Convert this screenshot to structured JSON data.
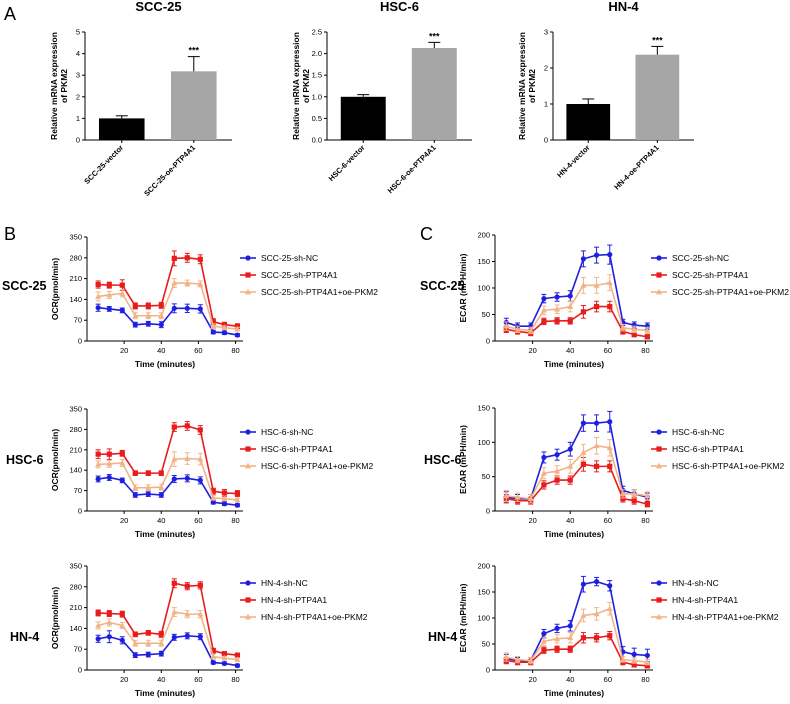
{
  "panel_labels": {
    "A": "A",
    "B": "B",
    "C": "C"
  },
  "row_labels": [
    "SCC-25",
    "HSC-6",
    "HN-4"
  ],
  "chart_data": [
    {
      "id": "A1",
      "type": "bar",
      "title": "SCC-25",
      "ylabel_line1": "Relative mRNA expression",
      "ylabel_line2": "of PKM2",
      "categories": [
        "SCC-25-vector",
        "SCC-25-oe-PTP4A1"
      ],
      "values": [
        1.0,
        3.18
      ],
      "errors": [
        0.12,
        0.68
      ],
      "colors": [
        "#000000",
        "#a6a6a6"
      ],
      "significance": [
        "",
        "***"
      ],
      "ylim": [
        0,
        5
      ],
      "yticks": [
        "0",
        "1",
        "2",
        "3",
        "4",
        "5"
      ]
    },
    {
      "id": "A2",
      "type": "bar",
      "title": "HSC-6",
      "ylabel_line1": "Relative mRNA expression",
      "ylabel_line2": "of PKM2",
      "categories": [
        "HSC-6-vector",
        "HSC-6-oe-PTP4A1"
      ],
      "values": [
        1.0,
        2.13
      ],
      "errors": [
        0.05,
        0.13
      ],
      "colors": [
        "#000000",
        "#a6a6a6"
      ],
      "significance": [
        "",
        "***"
      ],
      "ylim": [
        0,
        2.5
      ],
      "yticks": [
        "0.0",
        "0.5",
        "1.0",
        "1.5",
        "2.0",
        "2.5"
      ]
    },
    {
      "id": "A3",
      "type": "bar",
      "title": "HN-4",
      "ylabel_line1": "Relative mRNA expression",
      "ylabel_line2": "of PKM2",
      "categories": [
        "HN-4-vector",
        "HN-4-oe-PTP4A1"
      ],
      "values": [
        1.0,
        2.37
      ],
      "errors": [
        0.14,
        0.23
      ],
      "colors": [
        "#000000",
        "#a6a6a6"
      ],
      "significance": [
        "",
        "***"
      ],
      "ylim": [
        0,
        3
      ],
      "yticks": [
        "0",
        "1",
        "2",
        "3"
      ]
    },
    {
      "id": "B1",
      "type": "line",
      "ylabel": "OCR(pmol/min)",
      "xlabel": "Time (minutes)",
      "ylim": [
        0,
        350
      ],
      "yticks": [
        "0",
        "70",
        "140",
        "210",
        "280",
        "350"
      ],
      "xlim": [
        0,
        84
      ],
      "xticks": [
        "20",
        "40",
        "60",
        "80"
      ],
      "x": [
        6,
        12,
        19,
        26,
        33,
        40,
        47,
        54,
        61,
        68,
        74,
        81
      ],
      "series": [
        {
          "name": "SCC-25-sh-NC",
          "color": "#1f1fe0",
          "marker": "circle",
          "values": [
            112,
            108,
            103,
            55,
            58,
            55,
            110,
            110,
            108,
            30,
            28,
            20
          ],
          "errors": [
            12,
            8,
            8,
            8,
            8,
            10,
            15,
            14,
            14,
            6,
            6,
            5
          ]
        },
        {
          "name": "SCC-25-sh-PTP4A1",
          "color": "#e81c1c",
          "marker": "square",
          "values": [
            190,
            188,
            188,
            118,
            118,
            120,
            278,
            280,
            275,
            65,
            55,
            50
          ],
          "errors": [
            12,
            10,
            18,
            10,
            10,
            10,
            25,
            15,
            15,
            10,
            8,
            8
          ]
        },
        {
          "name": "SCC-25-sh-PTP4A1+oe-PKM2",
          "color": "#f2b487",
          "marker": "triangle",
          "values": [
            150,
            155,
            160,
            85,
            85,
            85,
            195,
            195,
            192,
            50,
            45,
            40
          ],
          "errors": [
            15,
            12,
            12,
            10,
            10,
            10,
            15,
            10,
            10,
            8,
            6,
            6
          ]
        }
      ]
    },
    {
      "id": "C1",
      "type": "line",
      "ylabel": "ECAR (mPH/min)",
      "xlabel": "Time (minutes)",
      "ylim": [
        0,
        200
      ],
      "yticks": [
        "0",
        "50",
        "100",
        "150",
        "200"
      ],
      "xlim": [
        0,
        84
      ],
      "xticks": [
        "20",
        "40",
        "60",
        "80"
      ],
      "x": [
        6,
        12,
        19,
        26,
        33,
        40,
        47,
        54,
        61,
        68,
        74,
        81
      ],
      "series": [
        {
          "name": "SCC-25-sh-NC",
          "color": "#1f1fe0",
          "marker": "circle",
          "values": [
            35,
            28,
            28,
            80,
            83,
            85,
            155,
            162,
            163,
            35,
            30,
            28
          ],
          "errors": [
            8,
            6,
            6,
            8,
            8,
            10,
            15,
            15,
            18,
            6,
            6,
            6
          ]
        },
        {
          "name": "SCC-25-sh-PTP4A1",
          "color": "#e81c1c",
          "marker": "square",
          "values": [
            22,
            18,
            15,
            37,
            38,
            38,
            55,
            65,
            65,
            18,
            12,
            8
          ],
          "errors": [
            6,
            5,
            5,
            6,
            6,
            6,
            12,
            10,
            10,
            5,
            4,
            4
          ]
        },
        {
          "name": "SCC-25-sh-PTP4A1+oe-PKM2",
          "color": "#f2b487",
          "marker": "triangle",
          "values": [
            28,
            22,
            20,
            58,
            60,
            65,
            105,
            105,
            110,
            25,
            22,
            20
          ],
          "errors": [
            8,
            6,
            6,
            8,
            8,
            10,
            15,
            15,
            15,
            6,
            6,
            6
          ]
        }
      ]
    },
    {
      "id": "B2",
      "type": "line",
      "ylabel": "OCR(pmol/min)",
      "xlabel": "Time (minutes)",
      "ylim": [
        0,
        350
      ],
      "yticks": [
        "0",
        "70",
        "140",
        "210",
        "280",
        "350"
      ],
      "xlim": [
        0,
        84
      ],
      "xticks": [
        "20",
        "40",
        "60",
        "80"
      ],
      "x": [
        6,
        12,
        19,
        26,
        33,
        40,
        47,
        54,
        61,
        68,
        74,
        81
      ],
      "series": [
        {
          "name": "HSC-6-sh-NC",
          "color": "#1f1fe0",
          "marker": "circle",
          "values": [
            110,
            115,
            105,
            55,
            58,
            55,
            110,
            112,
            105,
            30,
            25,
            20
          ],
          "errors": [
            10,
            10,
            8,
            8,
            8,
            8,
            12,
            12,
            12,
            6,
            6,
            5
          ]
        },
        {
          "name": "HSC-6-sh-PTP4A1",
          "color": "#e81c1c",
          "marker": "square",
          "values": [
            195,
            195,
            198,
            130,
            130,
            130,
            288,
            292,
            278,
            68,
            62,
            60
          ],
          "errors": [
            15,
            18,
            10,
            8,
            8,
            8,
            15,
            15,
            15,
            10,
            12,
            10
          ]
        },
        {
          "name": "HSC-6-sh-PTP4A1+oe-PKM2",
          "color": "#f2b487",
          "marker": "triangle",
          "values": [
            160,
            162,
            165,
            80,
            80,
            82,
            178,
            180,
            178,
            45,
            42,
            38
          ],
          "errors": [
            12,
            12,
            12,
            10,
            10,
            10,
            25,
            20,
            20,
            8,
            6,
            6
          ]
        }
      ]
    },
    {
      "id": "C2",
      "type": "line",
      "ylabel": "ECAR (mPH/min)",
      "xlabel": "Time (minutes)",
      "ylim": [
        0,
        150
      ],
      "yticks": [
        "0",
        "50",
        "100",
        "150"
      ],
      "xlim": [
        0,
        84
      ],
      "xticks": [
        "20",
        "40",
        "60",
        "80"
      ],
      "x": [
        6,
        12,
        19,
        26,
        33,
        40,
        47,
        54,
        61,
        68,
        74,
        81
      ],
      "series": [
        {
          "name": "HSC-6-sh-NC",
          "color": "#1f1fe0",
          "marker": "circle",
          "values": [
            20,
            18,
            18,
            78,
            82,
            90,
            128,
            128,
            130,
            30,
            25,
            20
          ],
          "errors": [
            8,
            6,
            6,
            8,
            8,
            10,
            12,
            12,
            15,
            6,
            6,
            6
          ]
        },
        {
          "name": "HSC-6-sh-PTP4A1",
          "color": "#e81c1c",
          "marker": "square",
          "values": [
            18,
            15,
            15,
            38,
            45,
            45,
            68,
            65,
            65,
            18,
            15,
            10
          ],
          "errors": [
            6,
            5,
            5,
            6,
            6,
            6,
            10,
            8,
            8,
            5,
            5,
            4
          ]
        },
        {
          "name": "HSC-6-sh-PTP4A1+oe-PKM2",
          "color": "#f2b487",
          "marker": "triangle",
          "values": [
            22,
            20,
            18,
            55,
            58,
            65,
            85,
            95,
            92,
            25,
            25,
            22
          ],
          "errors": [
            8,
            6,
            6,
            8,
            8,
            10,
            12,
            12,
            12,
            6,
            6,
            6
          ]
        }
      ]
    },
    {
      "id": "B3",
      "type": "line",
      "ylabel": "OCR(pmol/min)",
      "xlabel": "Time (minutes)",
      "ylim": [
        0,
        350
      ],
      "yticks": [
        "0",
        "70",
        "140",
        "210",
        "280",
        "350"
      ],
      "xlim": [
        0,
        84
      ],
      "xticks": [
        "20",
        "40",
        "60",
        "80"
      ],
      "x": [
        6,
        12,
        19,
        26,
        33,
        40,
        47,
        54,
        61,
        68,
        74,
        81
      ],
      "series": [
        {
          "name": "HN-4-sh-NC",
          "color": "#1f1fe0",
          "marker": "circle",
          "values": [
            105,
            112,
            100,
            50,
            52,
            55,
            110,
            115,
            112,
            25,
            22,
            15
          ],
          "errors": [
            12,
            20,
            12,
            8,
            8,
            8,
            10,
            10,
            10,
            5,
            5,
            5
          ]
        },
        {
          "name": "HN-4-sh-PTP4A1",
          "color": "#e81c1c",
          "marker": "square",
          "values": [
            192,
            190,
            188,
            120,
            125,
            120,
            292,
            282,
            285,
            65,
            55,
            50
          ],
          "errors": [
            10,
            10,
            10,
            8,
            8,
            10,
            15,
            12,
            12,
            8,
            6,
            6
          ]
        },
        {
          "name": "HN-4-sh-PTP4A1+oe-PKM2",
          "color": "#f2b487",
          "marker": "triangle",
          "values": [
            150,
            160,
            150,
            90,
            90,
            90,
            195,
            188,
            188,
            45,
            40,
            35
          ],
          "errors": [
            12,
            12,
            10,
            10,
            10,
            10,
            15,
            12,
            12,
            8,
            6,
            6
          ]
        }
      ]
    },
    {
      "id": "C3",
      "type": "line",
      "ylabel": "ECAR (mPH/min)",
      "xlabel": "Time (minutes)",
      "ylim": [
        0,
        200
      ],
      "yticks": [
        "0",
        "50",
        "100",
        "150",
        "200"
      ],
      "xlim": [
        0,
        84
      ],
      "xticks": [
        "20",
        "40",
        "60",
        "80"
      ],
      "x": [
        6,
        12,
        19,
        26,
        33,
        40,
        47,
        54,
        61,
        68,
        74,
        81
      ],
      "series": [
        {
          "name": "HN-4-sh-NC",
          "color": "#1f1fe0",
          "marker": "circle",
          "values": [
            22,
            18,
            18,
            70,
            80,
            85,
            165,
            170,
            162,
            35,
            30,
            28
          ],
          "errors": [
            8,
            6,
            6,
            8,
            8,
            10,
            15,
            8,
            10,
            10,
            12,
            12
          ]
        },
        {
          "name": "HN-4-sh-PTP4A1",
          "color": "#e81c1c",
          "marker": "square",
          "values": [
            18,
            15,
            15,
            38,
            40,
            40,
            62,
            62,
            66,
            15,
            10,
            8
          ],
          "errors": [
            6,
            5,
            5,
            6,
            6,
            6,
            10,
            8,
            8,
            5,
            4,
            4
          ]
        },
        {
          "name": "HN-4-sh-PTP4A1+oe-PKM2",
          "color": "#f2b487",
          "marker": "triangle",
          "values": [
            25,
            20,
            18,
            55,
            60,
            62,
            105,
            108,
            118,
            20,
            18,
            15
          ],
          "errors": [
            8,
            6,
            6,
            8,
            8,
            10,
            12,
            12,
            12,
            5,
            5,
            5
          ]
        }
      ]
    }
  ]
}
